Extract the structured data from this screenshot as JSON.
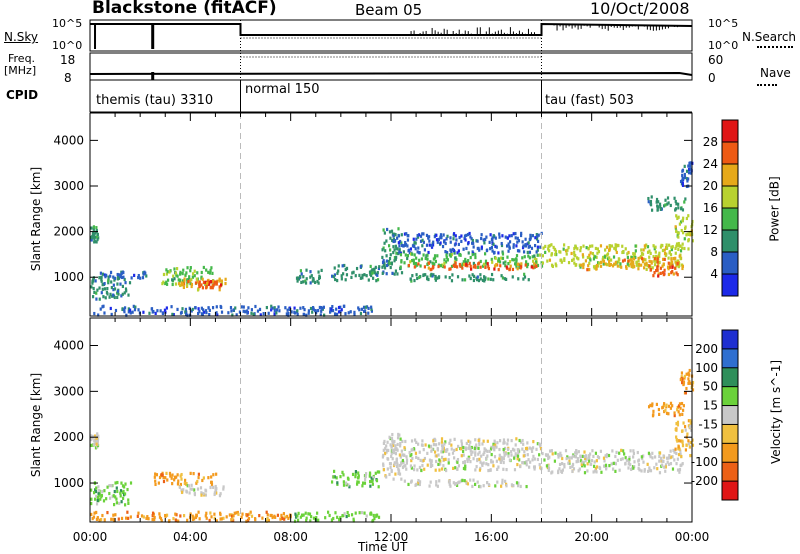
{
  "header": {
    "station": "Blackstone (fitACF)",
    "beam": "Beam 05",
    "date": "10/Oct/2008"
  },
  "meta_panels": {
    "nsky_label": "N.Sky",
    "nsearch_label": "N.Search",
    "noise_ticks_left": [
      "10^5",
      "10^0"
    ],
    "noise_ticks_right": [
      "10^5",
      "10^0"
    ],
    "freq_label_1": "Freq.",
    "freq_label_2": "[MHz]",
    "freq_ticks": [
      "18",
      "8"
    ],
    "nave_label": "Nave",
    "nave_ticks": [
      "60",
      "0"
    ],
    "cpid_label": "CPID",
    "cpid_modes": [
      {
        "name": "themis (tau) 3310",
        "start_hour": 0,
        "end_hour": 6
      },
      {
        "name": "normal 150",
        "start_hour": 6,
        "end_hour": 18
      },
      {
        "name": "tau (fast) 503",
        "start_hour": 18,
        "end_hour": 24
      }
    ],
    "mode_boundaries_hours": [
      6,
      18
    ]
  },
  "chart_data": [
    {
      "type": "heatmap",
      "parameter": "Power",
      "ylabel": "Slant Range [km]",
      "xlabel": "",
      "x_range_hours": [
        0,
        24
      ],
      "ylim": [
        150,
        4600
      ],
      "y_ticks": [
        1000,
        2000,
        3000,
        4000
      ],
      "colorbar_label": "Power [dB]",
      "colorbar_ticks": [
        "4",
        "8",
        "12",
        "16",
        "20",
        "24",
        "28"
      ],
      "colorbar_colors": [
        "#1c29e8",
        "#2a5ec4",
        "#2f8f6a",
        "#44b84a",
        "#b8d230",
        "#e6a91a",
        "#ee5a14",
        "#e01616"
      ],
      "backscatter_regions": [
        {
          "t0": 0.0,
          "t1": 0.3,
          "r0": 1800,
          "r1": 2150,
          "level": 2
        },
        {
          "t0": 0.0,
          "t1": 1.6,
          "r0": 550,
          "r1": 1050,
          "level": 2
        },
        {
          "t0": 0.3,
          "t1": 2.2,
          "r0": 1000,
          "r1": 1150,
          "level": 1
        },
        {
          "t0": 2.8,
          "t1": 4.9,
          "r0": 850,
          "r1": 1250,
          "level": 3
        },
        {
          "t0": 3.5,
          "t1": 5.4,
          "r0": 750,
          "r1": 1000,
          "level": 5
        },
        {
          "t0": 4.3,
          "t1": 5.2,
          "r0": 800,
          "r1": 950,
          "level": 6
        },
        {
          "t0": 0.0,
          "t1": 11.5,
          "r0": 200,
          "r1": 400,
          "level": 1
        },
        {
          "t0": 8.2,
          "t1": 9.2,
          "r0": 900,
          "r1": 1200,
          "level": 2
        },
        {
          "t0": 9.6,
          "t1": 11.5,
          "r0": 950,
          "r1": 1300,
          "level": 2
        },
        {
          "t0": 11.6,
          "t1": 12.4,
          "r0": 1100,
          "r1": 2100,
          "level": 2
        },
        {
          "t0": 12.0,
          "t1": 18.0,
          "r0": 1550,
          "r1": 2000,
          "level": 1
        },
        {
          "t0": 12.3,
          "t1": 18.0,
          "r0": 1250,
          "r1": 1550,
          "level": 3
        },
        {
          "t0": 12.6,
          "t1": 17.8,
          "r0": 1200,
          "r1": 1350,
          "level": 6
        },
        {
          "t0": 12.5,
          "t1": 17.5,
          "r0": 950,
          "r1": 1100,
          "level": 2
        },
        {
          "t0": 18.0,
          "t1": 23.6,
          "r0": 1250,
          "r1": 1750,
          "level": 4
        },
        {
          "t0": 19.5,
          "t1": 23.6,
          "r0": 1200,
          "r1": 1450,
          "level": 5
        },
        {
          "t0": 22.3,
          "t1": 23.4,
          "r0": 1050,
          "r1": 1350,
          "level": 6
        },
        {
          "t0": 23.3,
          "t1": 24.0,
          "r0": 1600,
          "r1": 2400,
          "level": 4
        },
        {
          "t0": 22.2,
          "t1": 23.7,
          "r0": 2500,
          "r1": 2800,
          "level": 2
        },
        {
          "t0": 23.5,
          "t1": 24.0,
          "r0": 3000,
          "r1": 3550,
          "level": 1
        }
      ]
    },
    {
      "type": "heatmap",
      "parameter": "Velocity",
      "ylabel": "Slant Range [km]",
      "xlabel": "Time UT",
      "x_range_hours": [
        0,
        24
      ],
      "x_ticks": [
        "00:00",
        "04:00",
        "08:00",
        "12:00",
        "16:00",
        "20:00",
        "00:00"
      ],
      "ylim": [
        150,
        4600
      ],
      "y_ticks": [
        1000,
        2000,
        3000,
        4000
      ],
      "colorbar_label": "Velocity [m s^-1]",
      "colorbar_ticks": [
        "200",
        "100",
        "50",
        "15",
        "-15",
        "-50",
        "-100",
        "-200"
      ],
      "colorbar_colors": [
        "#1f2fd0",
        "#2f6fcf",
        "#2f8f5a",
        "#6bd23a",
        "#c8c8c8",
        "#f0c040",
        "#f39a1e",
        "#ec6016",
        "#e01616"
      ],
      "backscatter_regions": [
        {
          "t0": 0.0,
          "t1": 0.3,
          "r0": 1800,
          "r1": 2150,
          "level": 4
        },
        {
          "t0": 0.0,
          "t1": 1.6,
          "r0": 550,
          "r1": 1050,
          "level": 3
        },
        {
          "t0": 2.5,
          "t1": 5.0,
          "r0": 1000,
          "r1": 1250,
          "level": 6
        },
        {
          "t0": 3.5,
          "t1": 5.4,
          "r0": 750,
          "r1": 1000,
          "level": 4
        },
        {
          "t0": 0.0,
          "t1": 8.0,
          "r0": 200,
          "r1": 400,
          "level": 6
        },
        {
          "t0": 8.0,
          "t1": 11.5,
          "r0": 200,
          "r1": 400,
          "level": 3
        },
        {
          "t0": 9.6,
          "t1": 11.5,
          "r0": 950,
          "r1": 1300,
          "level": 3
        },
        {
          "t0": 11.6,
          "t1": 12.4,
          "r0": 1100,
          "r1": 2100,
          "level": 4
        },
        {
          "t0": 12.0,
          "t1": 18.0,
          "r0": 1300,
          "r1": 2000,
          "level": 4
        },
        {
          "t0": 12.5,
          "t1": 17.5,
          "r0": 950,
          "r1": 1100,
          "level": 4
        },
        {
          "t0": 18.0,
          "t1": 23.6,
          "r0": 1250,
          "r1": 1750,
          "level": 4
        },
        {
          "t0": 23.3,
          "t1": 24.0,
          "r0": 1600,
          "r1": 2400,
          "level": 5
        },
        {
          "t0": 22.2,
          "t1": 23.7,
          "r0": 2500,
          "r1": 2800,
          "level": 6
        },
        {
          "t0": 23.5,
          "t1": 24.0,
          "r0": 3000,
          "r1": 3550,
          "level": 6
        }
      ]
    }
  ]
}
